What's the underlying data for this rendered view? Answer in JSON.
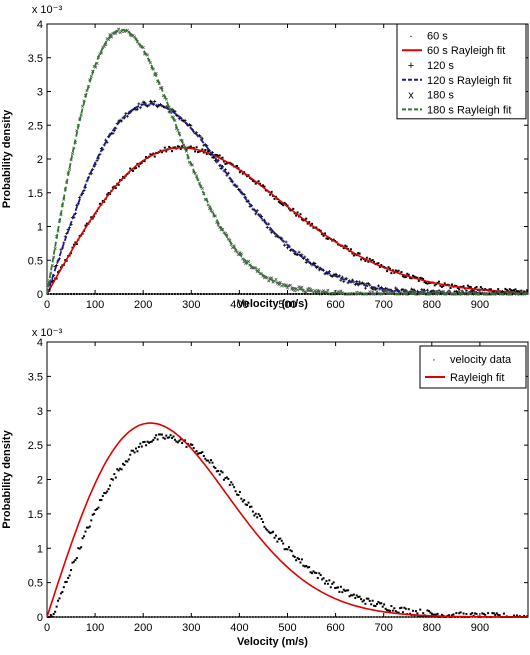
{
  "chart_data": [
    {
      "type": "scatter",
      "xlabel": "Velocity (m/s)",
      "ylabel": "Probability density",
      "y_multiplier": "x 10⁻³",
      "xlim": [
        0,
        1000
      ],
      "ylim": [
        0,
        0.004
      ],
      "xticks": [
        "0",
        "100",
        "200",
        "300",
        "400",
        "500",
        "600",
        "700",
        "800",
        "900"
      ],
      "yticks": [
        "0",
        "0.5",
        "1",
        "1.5",
        "2",
        "2.5",
        "3",
        "3.5",
        "4"
      ],
      "grid": false,
      "legend_position": "top-right",
      "series": [
        {
          "name": "60 s",
          "kind": "data",
          "color": "#000000",
          "marker": "·",
          "sigma": 280,
          "noise": 4e-05
        },
        {
          "name": "60 s Rayleigh fit",
          "kind": "fit",
          "color": "#e00000",
          "dash": "solid",
          "sigma": 280
        },
        {
          "name": "120 s",
          "kind": "data",
          "color": "#000000",
          "marker": "+",
          "sigma": 215,
          "noise": 4e-05
        },
        {
          "name": "120 s Rayleigh fit",
          "kind": "fit",
          "color": "#1a1a9a",
          "dash": "dashed",
          "sigma": 215
        },
        {
          "name": "180 s",
          "kind": "data",
          "color": "#000000",
          "marker": "x",
          "sigma": 155,
          "noise": 4e-05
        },
        {
          "name": "180 s Rayleigh fit",
          "kind": "fit",
          "color": "#2a7a2a",
          "dash": "dashed",
          "sigma": 155
        }
      ]
    },
    {
      "type": "scatter",
      "xlabel": "Velocity (m/s)",
      "ylabel": "Probability density",
      "y_multiplier": "x 10⁻³",
      "xlim": [
        0,
        1000
      ],
      "ylim": [
        0,
        0.004
      ],
      "xticks": [
        "0",
        "100",
        "200",
        "300",
        "400",
        "500",
        "600",
        "700",
        "800",
        "900"
      ],
      "yticks": [
        "0",
        "0.5",
        "1",
        "1.5",
        "2",
        "2.5",
        "3",
        "3.5",
        "4"
      ],
      "grid": false,
      "legend_position": "top-right",
      "series": [
        {
          "name": "velocity data",
          "kind": "data",
          "color": "#000000",
          "marker": "·",
          "sigma": 232,
          "noise": 5e-05,
          "shift": 12
        },
        {
          "name": "Rayleigh fit",
          "kind": "fit",
          "color": "#e00000",
          "dash": "solid",
          "sigma": 215
        }
      ]
    }
  ]
}
